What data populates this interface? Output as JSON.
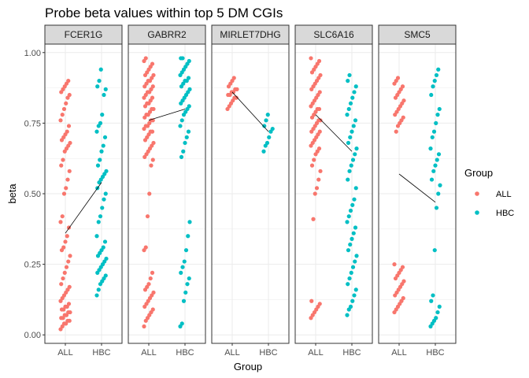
{
  "chart_data": {
    "type": "scatter",
    "title": "Probe beta values within top 5 DM CGIs",
    "xlabel": "Group",
    "ylabel": "beta",
    "ylim": [
      -0.03,
      1.03
    ],
    "y_ticks": [
      0.0,
      0.25,
      0.5,
      0.75,
      1.0
    ],
    "y_tick_labels": [
      "0.00",
      "0.25",
      "0.50",
      "0.75",
      "1.00"
    ],
    "categories": [
      "ALL",
      "HBC"
    ],
    "facet_variable": "gene",
    "grid": true,
    "legend": {
      "title": "Group",
      "position": "right",
      "entries": [
        {
          "label": "ALL",
          "color": "#F8766D"
        },
        {
          "label": "HBC",
          "color": "#00BFC4"
        }
      ]
    },
    "panels": [
      {
        "name": "FCER1G",
        "mean_line": {
          "ALL": 0.36,
          "HBC": 0.54
        },
        "series": [
          {
            "name": "ALL",
            "values": [
              0.02,
              0.03,
              0.04,
              0.04,
              0.05,
              0.05,
              0.06,
              0.06,
              0.07,
              0.07,
              0.08,
              0.08,
              0.09,
              0.09,
              0.1,
              0.1,
              0.11,
              0.12,
              0.13,
              0.14,
              0.15,
              0.16,
              0.17,
              0.18,
              0.2,
              0.22,
              0.24,
              0.26,
              0.28,
              0.3,
              0.31,
              0.33,
              0.35,
              0.38,
              0.4,
              0.42,
              0.5,
              0.52,
              0.55,
              0.58,
              0.6,
              0.62,
              0.65,
              0.66,
              0.67,
              0.68,
              0.69,
              0.7,
              0.71,
              0.72,
              0.74,
              0.76,
              0.78,
              0.8,
              0.82,
              0.84,
              0.85,
              0.86,
              0.87,
              0.88,
              0.89,
              0.9
            ]
          },
          {
            "name": "HBC",
            "values": [
              0.14,
              0.16,
              0.18,
              0.19,
              0.2,
              0.21,
              0.22,
              0.23,
              0.24,
              0.25,
              0.26,
              0.27,
              0.28,
              0.29,
              0.3,
              0.31,
              0.33,
              0.35,
              0.4,
              0.42,
              0.45,
              0.48,
              0.5,
              0.52,
              0.54,
              0.55,
              0.56,
              0.57,
              0.58,
              0.6,
              0.62,
              0.65,
              0.67,
              0.7,
              0.72,
              0.74,
              0.75,
              0.78,
              0.85,
              0.87,
              0.88,
              0.9,
              0.94
            ]
          }
        ]
      },
      {
        "name": "GABRR2",
        "mean_line": {
          "ALL": 0.76,
          "HBC": 0.8
        },
        "series": [
          {
            "name": "ALL",
            "values": [
              0.03,
              0.05,
              0.06,
              0.07,
              0.08,
              0.09,
              0.1,
              0.11,
              0.12,
              0.13,
              0.14,
              0.15,
              0.16,
              0.17,
              0.18,
              0.2,
              0.22,
              0.3,
              0.31,
              0.42,
              0.5,
              0.6,
              0.62,
              0.63,
              0.64,
              0.65,
              0.66,
              0.67,
              0.68,
              0.69,
              0.7,
              0.71,
              0.72,
              0.72,
              0.73,
              0.74,
              0.74,
              0.75,
              0.76,
              0.76,
              0.77,
              0.78,
              0.78,
              0.79,
              0.8,
              0.8,
              0.81,
              0.82,
              0.82,
              0.83,
              0.84,
              0.84,
              0.85,
              0.86,
              0.86,
              0.87,
              0.88,
              0.88,
              0.89,
              0.9,
              0.9,
              0.91,
              0.92,
              0.92,
              0.93,
              0.94,
              0.95,
              0.96,
              0.97,
              0.98
            ]
          },
          {
            "name": "HBC",
            "values": [
              0.03,
              0.04,
              0.12,
              0.15,
              0.18,
              0.2,
              0.22,
              0.24,
              0.26,
              0.3,
              0.35,
              0.4,
              0.63,
              0.65,
              0.68,
              0.7,
              0.72,
              0.74,
              0.76,
              0.78,
              0.79,
              0.8,
              0.81,
              0.82,
              0.83,
              0.84,
              0.85,
              0.86,
              0.87,
              0.88,
              0.89,
              0.9,
              0.9,
              0.91,
              0.92,
              0.93,
              0.94,
              0.95,
              0.96,
              0.97,
              0.98,
              0.98
            ]
          }
        ]
      },
      {
        "name": "MIRLET7DHG",
        "mean_line": {
          "ALL": 0.86,
          "HBC": 0.72
        },
        "series": [
          {
            "name": "ALL",
            "values": [
              0.8,
              0.81,
              0.82,
              0.83,
              0.84,
              0.84,
              0.85,
              0.85,
              0.86,
              0.86,
              0.87,
              0.87,
              0.88,
              0.89,
              0.9,
              0.91
            ]
          },
          {
            "name": "HBC",
            "values": [
              0.65,
              0.67,
              0.68,
              0.7,
              0.72,
              0.73,
              0.74,
              0.76,
              0.78
            ]
          }
        ]
      },
      {
        "name": "SLC6A16",
        "mean_line": {
          "ALL": 0.78,
          "HBC": 0.65
        },
        "series": [
          {
            "name": "ALL",
            "values": [
              0.06,
              0.07,
              0.08,
              0.09,
              0.1,
              0.11,
              0.12,
              0.41,
              0.5,
              0.52,
              0.55,
              0.58,
              0.6,
              0.62,
              0.64,
              0.65,
              0.66,
              0.67,
              0.68,
              0.69,
              0.7,
              0.71,
              0.72,
              0.72,
              0.73,
              0.74,
              0.75,
              0.76,
              0.76,
              0.77,
              0.78,
              0.79,
              0.8,
              0.8,
              0.81,
              0.82,
              0.83,
              0.84,
              0.85,
              0.86,
              0.87,
              0.88,
              0.89,
              0.9,
              0.91,
              0.92,
              0.93,
              0.94,
              0.95,
              0.96,
              0.97,
              0.98
            ]
          },
          {
            "name": "HBC",
            "values": [
              0.07,
              0.09,
              0.1,
              0.12,
              0.14,
              0.16,
              0.18,
              0.2,
              0.22,
              0.24,
              0.26,
              0.28,
              0.3,
              0.32,
              0.34,
              0.36,
              0.38,
              0.4,
              0.42,
              0.44,
              0.46,
              0.48,
              0.52,
              0.55,
              0.58,
              0.6,
              0.62,
              0.64,
              0.66,
              0.68,
              0.7,
              0.72,
              0.74,
              0.76,
              0.78,
              0.8,
              0.82,
              0.84,
              0.86,
              0.88,
              0.9,
              0.92
            ]
          }
        ]
      },
      {
        "name": "SMC5",
        "mean_line": {
          "ALL": 0.57,
          "HBC": 0.47
        },
        "series": [
          {
            "name": "ALL",
            "values": [
              0.08,
              0.09,
              0.1,
              0.11,
              0.12,
              0.13,
              0.14,
              0.15,
              0.16,
              0.17,
              0.18,
              0.19,
              0.2,
              0.21,
              0.22,
              0.23,
              0.24,
              0.25,
              0.72,
              0.74,
              0.75,
              0.76,
              0.77,
              0.78,
              0.79,
              0.8,
              0.81,
              0.82,
              0.83,
              0.84,
              0.85,
              0.86,
              0.87,
              0.88,
              0.89,
              0.9,
              0.91
            ]
          },
          {
            "name": "HBC",
            "values": [
              0.03,
              0.04,
              0.05,
              0.06,
              0.08,
              0.1,
              0.12,
              0.14,
              0.3,
              0.45,
              0.5,
              0.53,
              0.55,
              0.58,
              0.6,
              0.62,
              0.64,
              0.66,
              0.7,
              0.72,
              0.75,
              0.78,
              0.8,
              0.85,
              0.88,
              0.9,
              0.92,
              0.94
            ]
          }
        ]
      }
    ]
  }
}
